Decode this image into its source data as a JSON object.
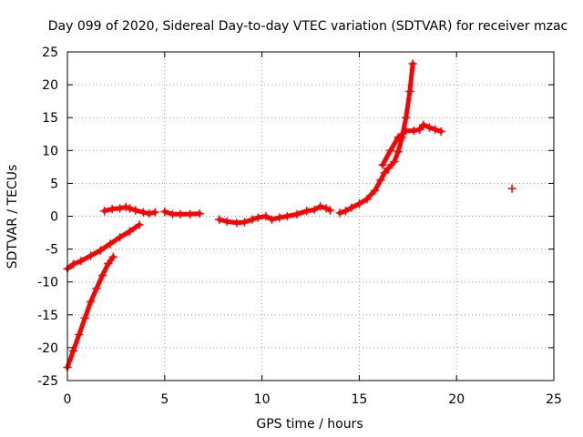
{
  "chart_data": {
    "type": "scatter",
    "title": "Day 099 of 2020, Sidereal Day-to-day VTEC variation (SDTVAR) for receiver mzac",
    "xlabel": "GPS time / hours",
    "ylabel": "SDTVAR / TECUs",
    "xlim": [
      0,
      25
    ],
    "ylim": [
      -25,
      25
    ],
    "xticks": [
      0,
      5,
      10,
      15,
      20,
      25
    ],
    "yticks": [
      -25,
      -20,
      -15,
      -10,
      -5,
      0,
      5,
      10,
      15,
      20,
      25
    ],
    "grid": true,
    "marker": "plus",
    "series": [
      {
        "name": "SDTVAR",
        "color": "#ff0000",
        "segments": [
          [
            [
              0.0,
              -8.0
            ],
            [
              0.3,
              -7.3
            ],
            [
              0.7,
              -6.8
            ],
            [
              1.2,
              -6.0
            ],
            [
              1.7,
              -5.2
            ],
            [
              2.2,
              -4.2
            ],
            [
              2.7,
              -3.2
            ],
            [
              3.2,
              -2.3
            ],
            [
              3.7,
              -1.3
            ]
          ],
          [
            [
              0.0,
              -23.0
            ],
            [
              0.3,
              -20.5
            ],
            [
              0.6,
              -18.0
            ],
            [
              0.9,
              -15.5
            ],
            [
              1.2,
              -13.0
            ],
            [
              1.5,
              -11.0
            ],
            [
              1.8,
              -9.0
            ],
            [
              2.1,
              -7.2
            ],
            [
              2.35,
              -6.2
            ]
          ],
          [
            [
              1.9,
              0.8
            ],
            [
              2.3,
              1.1
            ],
            [
              2.7,
              1.2
            ],
            [
              3.0,
              1.4
            ],
            [
              3.2,
              1.2
            ],
            [
              3.5,
              0.9
            ],
            [
              3.9,
              0.6
            ],
            [
              4.2,
              0.4
            ],
            [
              4.5,
              0.6
            ]
          ],
          [
            [
              5.0,
              0.7
            ],
            [
              5.4,
              0.3
            ],
            [
              5.8,
              0.3
            ],
            [
              6.3,
              0.3
            ],
            [
              6.8,
              0.4
            ]
          ],
          [
            [
              7.8,
              -0.5
            ],
            [
              8.2,
              -0.8
            ],
            [
              8.7,
              -1.0
            ],
            [
              9.1,
              -0.9
            ],
            [
              9.5,
              -0.5
            ],
            [
              9.8,
              -0.2
            ],
            [
              10.2,
              0.0
            ],
            [
              10.5,
              -0.5
            ],
            [
              10.9,
              -0.2
            ],
            [
              11.3,
              0.0
            ],
            [
              11.8,
              0.3
            ],
            [
              12.3,
              0.8
            ],
            [
              12.7,
              1.0
            ],
            [
              13.0,
              1.5
            ],
            [
              13.3,
              1.2
            ],
            [
              13.5,
              0.9
            ]
          ],
          [
            [
              14.0,
              0.5
            ],
            [
              14.3,
              0.8
            ],
            [
              14.6,
              1.3
            ],
            [
              15.0,
              1.9
            ],
            [
              15.4,
              2.6
            ],
            [
              15.8,
              3.9
            ],
            [
              16.1,
              5.5
            ],
            [
              16.3,
              6.6
            ],
            [
              16.5,
              7.3
            ],
            [
              16.8,
              8.3
            ],
            [
              17.0,
              9.8
            ],
            [
              17.2,
              12.0
            ],
            [
              17.4,
              15.0
            ],
            [
              17.6,
              19.0
            ],
            [
              17.75,
              23.2
            ]
          ],
          [
            [
              16.2,
              7.8
            ],
            [
              16.6,
              10.0
            ],
            [
              17.0,
              12.0
            ],
            [
              17.4,
              13.0
            ],
            [
              17.8,
              13.0
            ],
            [
              18.1,
              13.2
            ],
            [
              18.3,
              13.9
            ],
            [
              18.6,
              13.5
            ],
            [
              18.9,
              13.2
            ],
            [
              19.2,
              12.9
            ]
          ],
          [
            [
              22.85,
              4.2
            ]
          ]
        ]
      }
    ]
  }
}
